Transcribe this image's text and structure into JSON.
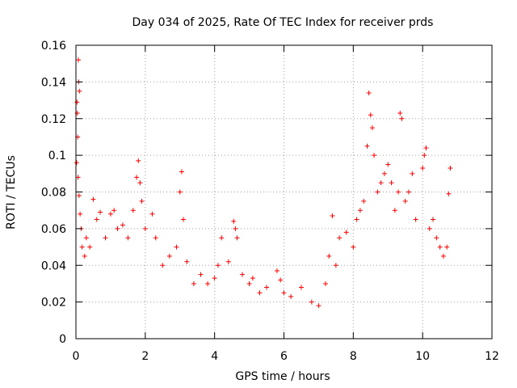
{
  "chart_data": {
    "type": "scatter",
    "title": "Day 034 of 2025, Rate Of TEC Index for receiver prds",
    "xlabel": "GPS time / hours",
    "ylabel": "ROTI / TECUs",
    "xlim": [
      0,
      12
    ],
    "ylim": [
      0,
      0.16
    ],
    "xticks": [
      0,
      2,
      4,
      6,
      8,
      10,
      12
    ],
    "yticks": [
      0,
      0.02,
      0.04,
      0.06,
      0.08,
      0.1,
      0.12,
      0.14,
      0.16
    ],
    "xtick_labels": [
      "0",
      "2",
      "4",
      "6",
      "8",
      "10",
      "12"
    ],
    "ytick_labels": [
      "0",
      "0.02",
      "0.04",
      "0.06",
      "0.08",
      "0.1",
      "0.12",
      "0.14",
      "0.16"
    ],
    "grid": true,
    "marker": "+",
    "color": "#ff0000",
    "series": [
      {
        "points": [
          [
            0.02,
            0.096
          ],
          [
            0.03,
            0.129
          ],
          [
            0.04,
            0.123
          ],
          [
            0.05,
            0.11
          ],
          [
            0.07,
            0.152
          ],
          [
            0.08,
            0.14
          ],
          [
            0.1,
            0.135
          ],
          [
            0.06,
            0.088
          ],
          [
            0.09,
            0.078
          ],
          [
            0.12,
            0.068
          ],
          [
            0.15,
            0.06
          ],
          [
            0.18,
            0.05
          ],
          [
            0.25,
            0.045
          ],
          [
            0.3,
            0.055
          ],
          [
            0.4,
            0.05
          ],
          [
            0.5,
            0.076
          ],
          [
            0.6,
            0.065
          ],
          [
            0.7,
            0.069
          ],
          [
            0.85,
            0.055
          ],
          [
            1.0,
            0.068
          ],
          [
            1.1,
            0.07
          ],
          [
            1.2,
            0.06
          ],
          [
            1.35,
            0.062
          ],
          [
            1.5,
            0.055
          ],
          [
            1.65,
            0.07
          ],
          [
            1.75,
            0.088
          ],
          [
            1.8,
            0.097
          ],
          [
            1.85,
            0.085
          ],
          [
            1.9,
            0.075
          ],
          [
            2.0,
            0.06
          ],
          [
            2.2,
            0.068
          ],
          [
            2.3,
            0.055
          ],
          [
            2.5,
            0.04
          ],
          [
            2.7,
            0.045
          ],
          [
            2.9,
            0.05
          ],
          [
            3.0,
            0.08
          ],
          [
            3.05,
            0.091
          ],
          [
            3.1,
            0.065
          ],
          [
            3.2,
            0.042
          ],
          [
            3.4,
            0.03
          ],
          [
            3.6,
            0.035
          ],
          [
            3.8,
            0.03
          ],
          [
            4.0,
            0.033
          ],
          [
            4.1,
            0.04
          ],
          [
            4.2,
            0.055
          ],
          [
            4.4,
            0.042
          ],
          [
            4.55,
            0.064
          ],
          [
            4.6,
            0.06
          ],
          [
            4.65,
            0.055
          ],
          [
            4.8,
            0.035
          ],
          [
            5.0,
            0.03
          ],
          [
            5.1,
            0.033
          ],
          [
            5.3,
            0.025
          ],
          [
            5.5,
            0.028
          ],
          [
            5.8,
            0.037
          ],
          [
            5.9,
            0.032
          ],
          [
            6.0,
            0.025
          ],
          [
            6.2,
            0.023
          ],
          [
            6.5,
            0.028
          ],
          [
            6.8,
            0.02
          ],
          [
            7.0,
            0.018
          ],
          [
            7.2,
            0.03
          ],
          [
            7.3,
            0.045
          ],
          [
            7.4,
            0.067
          ],
          [
            7.5,
            0.04
          ],
          [
            7.6,
            0.055
          ],
          [
            7.8,
            0.058
          ],
          [
            8.0,
            0.05
          ],
          [
            8.1,
            0.065
          ],
          [
            8.2,
            0.07
          ],
          [
            8.3,
            0.075
          ],
          [
            8.4,
            0.105
          ],
          [
            8.45,
            0.134
          ],
          [
            8.5,
            0.122
          ],
          [
            8.55,
            0.115
          ],
          [
            8.6,
            0.1
          ],
          [
            8.7,
            0.08
          ],
          [
            8.8,
            0.085
          ],
          [
            8.9,
            0.09
          ],
          [
            9.0,
            0.095
          ],
          [
            9.1,
            0.085
          ],
          [
            9.2,
            0.07
          ],
          [
            9.3,
            0.08
          ],
          [
            9.35,
            0.123
          ],
          [
            9.4,
            0.12
          ],
          [
            9.5,
            0.075
          ],
          [
            9.6,
            0.08
          ],
          [
            9.7,
            0.09
          ],
          [
            9.8,
            0.065
          ],
          [
            10.0,
            0.093
          ],
          [
            10.05,
            0.1
          ],
          [
            10.1,
            0.104
          ],
          [
            10.2,
            0.06
          ],
          [
            10.3,
            0.065
          ],
          [
            10.4,
            0.055
          ],
          [
            10.5,
            0.05
          ],
          [
            10.6,
            0.045
          ],
          [
            10.7,
            0.05
          ],
          [
            10.75,
            0.079
          ],
          [
            10.8,
            0.093
          ]
        ]
      }
    ]
  }
}
